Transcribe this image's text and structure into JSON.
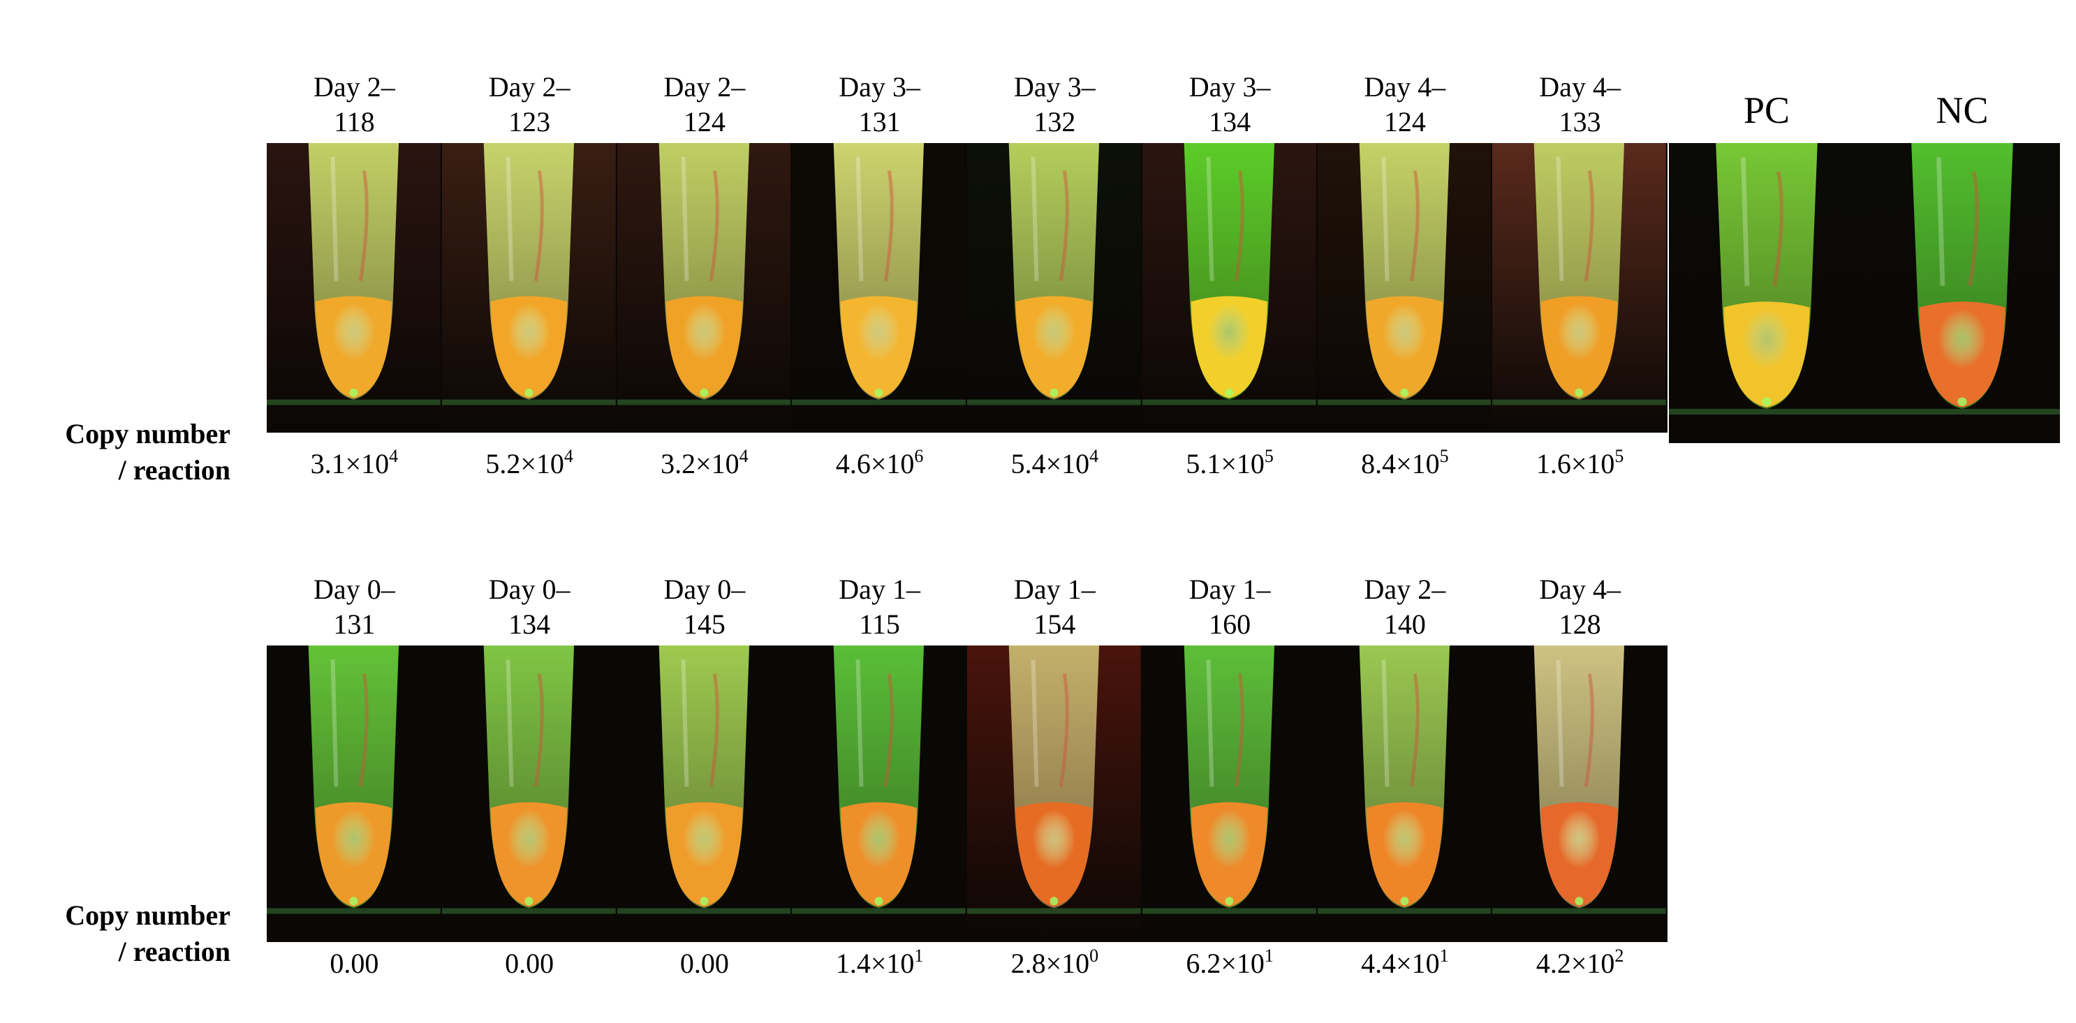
{
  "row_label_lines": [
    "Copy number",
    "/ reaction"
  ],
  "top_row": {
    "tubes": [
      {
        "day": "Day 2–",
        "id": "118",
        "copy_base": "3.1×10",
        "copy_exp": "4",
        "bg": "#2a1410",
        "liquid": "#f0a92a",
        "head": "#c9d96a"
      },
      {
        "day": "Day 2–",
        "id": "123",
        "copy_base": "5.2×10",
        "copy_exp": "4",
        "bg": "#3a1e12",
        "liquid": "#f2a526",
        "head": "#cddc70"
      },
      {
        "day": "Day 2–",
        "id": "124",
        "copy_base": "3.2×10",
        "copy_exp": "4",
        "bg": "#301810",
        "liquid": "#f0a226",
        "head": "#c6d868"
      },
      {
        "day": "Day 3–",
        "id": "131",
        "copy_base": "4.6×10",
        "copy_exp": "6",
        "bg": "#0d0a05",
        "liquid": "#f4b530",
        "head": "#d8de74"
      },
      {
        "day": "Day 3–",
        "id": "132",
        "copy_base": "5.4×10",
        "copy_exp": "4",
        "bg": "#0d1008",
        "liquid": "#f2ad2a",
        "head": "#bcd860"
      },
      {
        "day": "Day 3–",
        "id": "134",
        "copy_base": "5.1×10",
        "copy_exp": "5",
        "bg": "#2c1510",
        "liquid": "#f2cf2a",
        "head": "#5ed62a"
      },
      {
        "day": "Day 4–",
        "id": "124",
        "copy_base": "8.4×10",
        "copy_exp": "5",
        "bg": "#201208",
        "liquid": "#f0a82a",
        "head": "#cddc6c"
      },
      {
        "day": "Day 4–",
        "id": "133",
        "copy_base": "1.6×10",
        "copy_exp": "5",
        "bg": "#5a2a1c",
        "liquid": "#f09e26",
        "head": "#c2d466"
      }
    ],
    "controls": [
      {
        "label": "PC",
        "bg": "#0a0a06",
        "liquid": "#f2c42c",
        "head": "#7ed238"
      },
      {
        "label": "NC",
        "bg": "#0a0a06",
        "liquid": "#e8702a",
        "head": "#56c830"
      }
    ]
  },
  "bottom_row": {
    "tubes": [
      {
        "day": "Day 0–",
        "id": "131",
        "copy_base": "0.00",
        "copy_exp": "",
        "bg": "#0a0805",
        "liquid": "#ee9a2a",
        "head": "#68cc3a"
      },
      {
        "day": "Day 0–",
        "id": "134",
        "copy_base": "0.00",
        "copy_exp": "",
        "bg": "#0a0805",
        "liquid": "#ee942a",
        "head": "#86cf48"
      },
      {
        "day": "Day 0–",
        "id": "145",
        "copy_base": "0.00",
        "copy_exp": "",
        "bg": "#0a0805",
        "liquid": "#f09c2a",
        "head": "#a6d454"
      },
      {
        "day": "Day 1–",
        "id": "115",
        "copy_base": "1.4×10",
        "copy_exp": "1",
        "bg": "#0a0805",
        "liquid": "#ee8f2a",
        "head": "#5ec83a"
      },
      {
        "day": "Day 1–",
        "id": "154",
        "copy_base": "2.8×10",
        "copy_exp": "0",
        "bg": "#4a140c",
        "liquid": "#e66c24",
        "head": "#c8b870"
      },
      {
        "day": "Day 1–",
        "id": "160",
        "copy_base": "6.2×10",
        "copy_exp": "1",
        "bg": "#0a0805",
        "liquid": "#ee8a2a",
        "head": "#62c83c"
      },
      {
        "day": "Day 2–",
        "id": "140",
        "copy_base": "4.4×10",
        "copy_exp": "1",
        "bg": "#0a0805",
        "liquid": "#ee8628",
        "head": "#a2d256"
      },
      {
        "day": "Day 4–",
        "id": "128",
        "copy_base": "4.2×10",
        "copy_exp": "2",
        "bg": "#0a0805",
        "liquid": "#e6682a",
        "head": "#d8cc88"
      }
    ]
  }
}
